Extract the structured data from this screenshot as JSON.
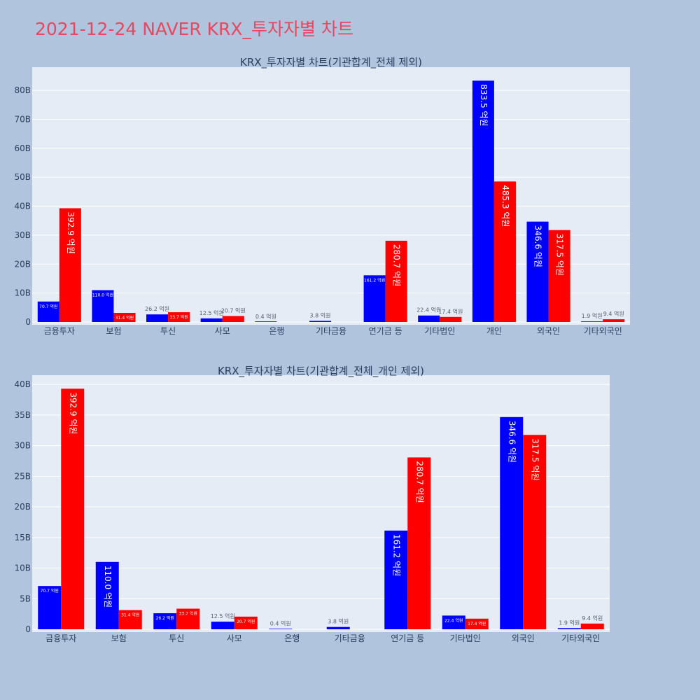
{
  "title": "2021-12-24 NAVER KRX_투자자별 차트",
  "colors": {
    "buy": "#0000ff",
    "sell": "#ff0000",
    "text": "#2a3f5f",
    "title": "#e8475f"
  },
  "chart_data": [
    {
      "type": "bar",
      "title": "KRX_투자자별 차트(기관합계_전체 제외)",
      "categories": [
        "금융투자",
        "보험",
        "투신",
        "사모",
        "은행",
        "기타금융",
        "연기금 등",
        "기타법인",
        "개인",
        "외국인",
        "기타외국인"
      ],
      "ylim": [
        0,
        88
      ],
      "yticks": [
        0,
        10,
        20,
        30,
        40,
        50,
        60,
        70,
        80
      ],
      "ytick_labels": [
        "0",
        "10B",
        "20B",
        "30B",
        "40B",
        "50B",
        "60B",
        "70B",
        "80B"
      ],
      "series": [
        {
          "name": "blue",
          "values": [
            7.07,
            11.0,
            2.62,
            1.25,
            0.04,
            0.38,
            16.12,
            2.24,
            83.35,
            34.66,
            0.19
          ],
          "labels": [
            "70.7 억원",
            "110.0 억원",
            "26.2 억원",
            "12.5 억원",
            "0.4 억원",
            "3.8 억원",
            "161.2 억원",
            "22.4 억원",
            "833.5 억원",
            "346.6 억원",
            "1.9 억원"
          ]
        },
        {
          "name": "red",
          "values": [
            39.29,
            3.14,
            3.37,
            2.07,
            null,
            null,
            28.07,
            1.74,
            48.53,
            31.75,
            0.94
          ],
          "labels": [
            "392.9 억원",
            "31.4 억원",
            "33.7 억원",
            "20.7 억원",
            null,
            null,
            "280.7 억원",
            "17.4 억원",
            "485.3 억원",
            "317.5 억원",
            "9.4 억원"
          ]
        }
      ]
    },
    {
      "type": "bar",
      "title": "KRX_투자자별 차트(기관합계_전체_개인 제외)",
      "categories": [
        "금융투자",
        "보험",
        "투신",
        "사모",
        "은행",
        "기타금융",
        "연기금 등",
        "기타법인",
        "외국인",
        "기타외국인"
      ],
      "ylim": [
        0,
        41.5
      ],
      "yticks": [
        0,
        5,
        10,
        15,
        20,
        25,
        30,
        35,
        40
      ],
      "ytick_labels": [
        "0",
        "5B",
        "10B",
        "15B",
        "20B",
        "25B",
        "30B",
        "35B",
        "40B"
      ],
      "series": [
        {
          "name": "blue",
          "values": [
            7.07,
            11.0,
            2.62,
            1.25,
            0.04,
            0.38,
            16.12,
            2.24,
            34.66,
            0.19
          ],
          "labels": [
            "70.7 억원",
            "110.0 억원",
            "26.2 억원",
            "12.5 억원",
            "0.4 억원",
            "3.8 억원",
            "161.2 억원",
            "22.4 억원",
            "346.6 억원",
            "1.9 억원"
          ]
        },
        {
          "name": "red",
          "values": [
            39.29,
            3.14,
            3.37,
            2.07,
            null,
            null,
            28.07,
            1.74,
            31.75,
            0.94
          ],
          "labels": [
            "392.9 억원",
            "31.4 억원",
            "33.7 억원",
            "20.7 억원",
            null,
            null,
            "280.7 억원",
            "17.4 억원",
            "317.5 억원",
            "9.4 억원"
          ]
        }
      ]
    }
  ]
}
